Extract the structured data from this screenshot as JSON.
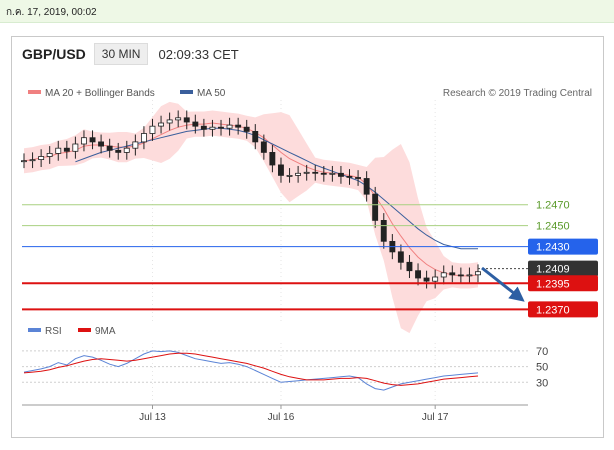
{
  "topbar": {
    "datetime": "ก.ค. 17, 2019, 00:02"
  },
  "header": {
    "pair": "GBP/USD",
    "timeframe": "30 MIN",
    "time": "02:09:33 CET"
  },
  "legend": {
    "ma20": "MA 20 + Bollinger Bands",
    "ma50": "MA 50",
    "credit": "Research © 2019 Trading Central",
    "rsi": "RSI",
    "rsi_ma": "9MA"
  },
  "colors": {
    "ma20": "#f08080",
    "bands": "#fddcdc",
    "ma50": "#3a5f9c",
    "support": "#dd1111",
    "resistance_green": "#a8d080",
    "pivot_blue": "#2563eb",
    "arrow": "#2d5fa3",
    "rsi": "#5b84d6",
    "rsi_ma": "#dd1111"
  },
  "chart_data": [
    {
      "type": "line",
      "title": "GBP/USD 30 MIN",
      "x_ticks": [
        "Jul 13",
        "Jul 16",
        "Jul 17"
      ],
      "ylim": [
        1.2358,
        1.257
      ],
      "series": [
        {
          "name": "Price",
          "values": [
            1.2512,
            1.2513,
            1.2516,
            1.2519,
            1.2524,
            1.2521,
            1.2528,
            1.2534,
            1.253,
            1.2526,
            1.2522,
            1.252,
            1.2524,
            1.253,
            1.2538,
            1.2545,
            1.2548,
            1.2551,
            1.2553,
            1.2549,
            1.2545,
            1.2542,
            1.2544,
            1.2543,
            1.2546,
            1.2544,
            1.254,
            1.253,
            1.252,
            1.2508,
            1.2498,
            1.2498,
            1.25,
            1.2501,
            1.25,
            1.2499,
            1.25,
            1.2497,
            1.2496,
            1.2495,
            1.248,
            1.2455,
            1.2435,
            1.2425,
            1.2415,
            1.2407,
            1.24,
            1.2397,
            1.2401,
            1.2405,
            1.2403,
            1.2402,
            1.2403,
            1.2406
          ]
        },
        {
          "name": "MA 20",
          "values": [
            1.2512,
            1.2513,
            1.2515,
            1.2516,
            1.2519,
            1.252,
            1.2522,
            1.2526,
            1.2527,
            1.2527,
            1.2526,
            1.2525,
            1.2525,
            1.2526,
            1.2529,
            1.2533,
            1.2537,
            1.2541,
            1.2544,
            1.2546,
            1.2547,
            1.2547,
            1.2548,
            1.2547,
            1.2546,
            1.2545,
            1.2543,
            1.2539,
            1.2534,
            1.2527,
            1.252,
            1.2514,
            1.251,
            1.2506,
            1.2503,
            1.2501,
            1.25,
            1.2499,
            1.2498,
            1.2496,
            1.249,
            1.2478,
            1.2466,
            1.2452,
            1.244,
            1.2429,
            1.242,
            1.2413,
            1.2408,
            1.2405,
            1.2403,
            1.2402,
            1.2402,
            1.2403
          ]
        },
        {
          "name": "MA 50",
          "values": [
            null,
            null,
            null,
            null,
            null,
            null,
            1.2511,
            1.2514,
            1.2517,
            1.252,
            1.2522,
            1.2524,
            1.2526,
            1.2528,
            1.253,
            1.2532,
            1.2534,
            1.2536,
            1.2538,
            1.254,
            1.2541,
            1.2542,
            1.2543,
            1.2543,
            1.2542,
            1.2541,
            1.2539,
            1.2536,
            1.2532,
            1.2528,
            1.2524,
            1.252,
            1.2516,
            1.2512,
            1.2508,
            1.2505,
            1.2502,
            1.2499,
            1.2496,
            1.2493,
            1.2488,
            1.2482,
            1.2475,
            1.2468,
            1.2461,
            1.2454,
            1.2447,
            1.2441,
            1.2436,
            1.2432,
            1.243,
            1.2428,
            1.2428,
            1.2428
          ]
        }
      ],
      "levels": [
        {
          "label": "1.2470",
          "value": 1.247,
          "style": "green"
        },
        {
          "label": "1.2450",
          "value": 1.245,
          "style": "green"
        },
        {
          "label": "1.2430",
          "value": 1.243,
          "style": "blue"
        },
        {
          "label": "1.2409",
          "value": 1.2409,
          "style": "current"
        },
        {
          "label": "1.2395",
          "value": 1.2395,
          "style": "red"
        },
        {
          "label": "1.2370",
          "value": 1.237,
          "style": "red"
        }
      ]
    },
    {
      "type": "line",
      "title": "RSI",
      "ylim": [
        10,
        80
      ],
      "y_ticks": [
        "70",
        "50",
        "30"
      ],
      "series": [
        {
          "name": "RSI",
          "values": [
            43,
            45,
            47,
            50,
            55,
            52,
            60,
            64,
            62,
            58,
            53,
            50,
            54,
            60,
            66,
            70,
            69,
            70,
            68,
            64,
            60,
            58,
            56,
            54,
            55,
            53,
            50,
            45,
            40,
            35,
            30,
            31,
            32,
            33,
            34,
            35,
            36,
            37,
            38,
            36,
            28,
            22,
            20,
            24,
            28,
            30,
            32,
            34,
            36,
            38,
            39,
            40,
            41,
            42
          ]
        },
        {
          "name": "9MA",
          "values": [
            42,
            43,
            44,
            46,
            49,
            51,
            54,
            57,
            59,
            60,
            59,
            58,
            57,
            58,
            60,
            62,
            64,
            66,
            67,
            67,
            66,
            64,
            62,
            60,
            58,
            56,
            54,
            51,
            48,
            44,
            40,
            37,
            35,
            33,
            33,
            33,
            34,
            35,
            35,
            36,
            35,
            32,
            29,
            27,
            26,
            27,
            28,
            30,
            32,
            34,
            35,
            36,
            37,
            38
          ]
        }
      ]
    }
  ]
}
